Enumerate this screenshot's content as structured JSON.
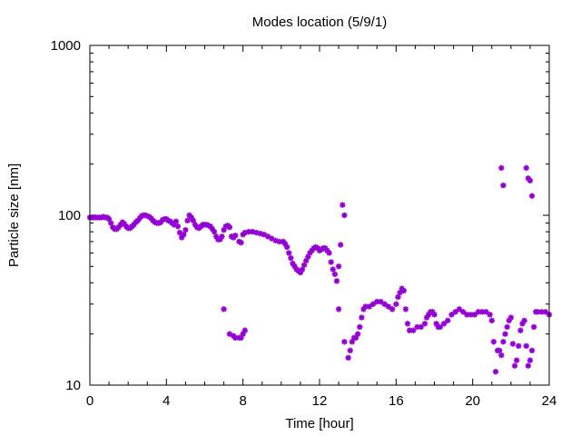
{
  "chart_data": {
    "type": "scatter",
    "title": "Modes location (5/9/1)",
    "xlabel": "Time [hour]",
    "ylabel": "Particle size [nm]",
    "xlim": [
      0,
      24
    ],
    "ylim": [
      10,
      1000
    ],
    "yscale": "log",
    "x_ticks": [
      0,
      4,
      8,
      12,
      16,
      20,
      24
    ],
    "x_tick_labels": [
      "0",
      "4",
      "8",
      "12",
      "16",
      "20",
      "24"
    ],
    "y_ticks": [
      10,
      100,
      1000
    ],
    "y_tick_labels": [
      "10",
      "100",
      "1000"
    ],
    "grid": false,
    "legend": "none",
    "marker_color": "#9400d3",
    "series": [
      {
        "name": "",
        "points": [
          [
            0.0,
            97
          ],
          [
            0.1,
            97
          ],
          [
            0.2,
            97
          ],
          [
            0.3,
            97
          ],
          [
            0.4,
            97
          ],
          [
            0.5,
            97
          ],
          [
            0.6,
            97
          ],
          [
            0.7,
            98
          ],
          [
            0.8,
            97
          ],
          [
            0.9,
            97
          ],
          [
            1.0,
            95
          ],
          [
            1.1,
            90
          ],
          [
            1.2,
            85
          ],
          [
            1.3,
            83
          ],
          [
            1.4,
            83
          ],
          [
            1.5,
            85
          ],
          [
            1.6,
            88
          ],
          [
            1.7,
            91
          ],
          [
            1.8,
            89
          ],
          [
            1.9,
            86
          ],
          [
            2.0,
            84
          ],
          [
            2.1,
            84
          ],
          [
            2.2,
            86
          ],
          [
            2.3,
            88
          ],
          [
            2.4,
            91
          ],
          [
            2.5,
            93
          ],
          [
            2.6,
            96
          ],
          [
            2.7,
            99
          ],
          [
            2.8,
            100
          ],
          [
            2.9,
            100
          ],
          [
            3.0,
            99
          ],
          [
            3.1,
            98
          ],
          [
            3.2,
            96
          ],
          [
            3.3,
            93
          ],
          [
            3.4,
            91
          ],
          [
            3.5,
            90
          ],
          [
            3.6,
            90
          ],
          [
            3.7,
            91
          ],
          [
            3.8,
            94
          ],
          [
            3.9,
            95
          ],
          [
            4.0,
            95
          ],
          [
            4.1,
            93
          ],
          [
            4.2,
            92
          ],
          [
            4.3,
            90
          ],
          [
            4.4,
            88
          ],
          [
            4.5,
            92
          ],
          [
            4.6,
            86
          ],
          [
            4.7,
            79
          ],
          [
            4.8,
            74
          ],
          [
            4.9,
            77
          ],
          [
            5.0,
            82
          ],
          [
            5.1,
            93
          ],
          [
            5.2,
            100
          ],
          [
            5.3,
            97
          ],
          [
            5.4,
            93
          ],
          [
            5.5,
            88
          ],
          [
            5.6,
            85
          ],
          [
            5.7,
            84
          ],
          [
            5.8,
            86
          ],
          [
            5.9,
            88
          ],
          [
            6.0,
            88
          ],
          [
            6.1,
            88
          ],
          [
            6.2,
            87
          ],
          [
            6.3,
            86
          ],
          [
            6.4,
            83
          ],
          [
            6.5,
            80
          ],
          [
            6.6,
            75
          ],
          [
            6.7,
            72
          ],
          [
            6.8,
            72
          ],
          [
            6.9,
            75
          ],
          [
            7.0,
            82
          ],
          [
            7.1,
            86
          ],
          [
            7.2,
            87
          ],
          [
            7.3,
            85
          ],
          [
            7.4,
            75
          ],
          [
            7.5,
            74
          ],
          [
            7.6,
            76
          ],
          [
            7.8,
            70
          ],
          [
            7.9,
            69
          ],
          [
            8.0,
            77
          ],
          [
            8.1,
            79
          ],
          [
            8.3,
            80
          ],
          [
            8.5,
            80
          ],
          [
            8.7,
            79
          ],
          [
            8.9,
            78
          ],
          [
            9.1,
            77
          ],
          [
            9.3,
            75
          ],
          [
            9.5,
            73
          ],
          [
            9.7,
            71
          ],
          [
            9.9,
            70
          ],
          [
            10.1,
            70
          ],
          [
            10.2,
            68
          ],
          [
            10.3,
            65
          ],
          [
            10.4,
            60
          ],
          [
            10.5,
            56
          ],
          [
            10.6,
            52
          ],
          [
            10.7,
            50
          ],
          [
            10.8,
            48
          ],
          [
            10.9,
            47
          ],
          [
            11.0,
            46
          ],
          [
            11.1,
            48
          ],
          [
            11.2,
            51
          ],
          [
            11.3,
            54
          ],
          [
            11.4,
            57
          ],
          [
            11.5,
            60
          ],
          [
            11.6,
            62
          ],
          [
            11.7,
            64
          ],
          [
            11.8,
            65
          ],
          [
            11.9,
            64
          ],
          [
            12.0,
            62
          ],
          [
            12.1,
            63
          ],
          [
            12.2,
            64
          ],
          [
            12.3,
            64
          ],
          [
            12.4,
            62
          ],
          [
            12.5,
            60
          ],
          [
            12.6,
            53
          ],
          [
            12.7,
            48
          ],
          [
            12.8,
            45
          ],
          [
            12.9,
            41
          ],
          [
            13.0,
            50
          ],
          [
            13.1,
            67
          ],
          [
            13.2,
            115
          ],
          [
            13.3,
            100
          ],
          [
            7.0,
            28
          ],
          [
            7.3,
            20
          ],
          [
            7.5,
            19.5
          ],
          [
            7.6,
            19
          ],
          [
            7.8,
            19
          ],
          [
            7.9,
            19
          ],
          [
            8.0,
            20
          ],
          [
            8.1,
            21
          ],
          [
            13.0,
            28
          ],
          [
            13.3,
            18
          ],
          [
            13.5,
            14.5
          ],
          [
            13.6,
            16
          ],
          [
            13.7,
            18
          ],
          [
            13.8,
            19
          ],
          [
            13.9,
            19
          ],
          [
            14.0,
            20
          ],
          [
            14.1,
            22
          ],
          [
            14.2,
            25
          ],
          [
            14.3,
            28
          ],
          [
            14.4,
            29
          ],
          [
            14.6,
            29
          ],
          [
            14.8,
            30
          ],
          [
            15.0,
            31
          ],
          [
            15.2,
            31
          ],
          [
            15.4,
            30
          ],
          [
            15.6,
            29
          ],
          [
            15.8,
            28
          ],
          [
            16.0,
            30
          ],
          [
            16.1,
            33
          ],
          [
            16.2,
            35
          ],
          [
            16.3,
            37
          ],
          [
            16.4,
            36
          ],
          [
            16.5,
            28
          ],
          [
            16.6,
            23
          ],
          [
            16.7,
            21
          ],
          [
            16.9,
            21
          ],
          [
            17.1,
            22
          ],
          [
            17.3,
            22
          ],
          [
            17.5,
            23
          ],
          [
            17.6,
            25
          ],
          [
            17.7,
            26
          ],
          [
            17.8,
            27
          ],
          [
            17.9,
            27
          ],
          [
            18.0,
            26
          ],
          [
            18.1,
            23
          ],
          [
            18.2,
            22
          ],
          [
            18.3,
            22
          ],
          [
            18.5,
            23
          ],
          [
            18.7,
            24
          ],
          [
            18.9,
            26
          ],
          [
            19.1,
            27
          ],
          [
            19.3,
            28
          ],
          [
            19.5,
            27
          ],
          [
            19.7,
            26
          ],
          [
            19.9,
            26
          ],
          [
            20.1,
            26
          ],
          [
            20.3,
            27
          ],
          [
            20.5,
            27
          ],
          [
            20.7,
            27
          ],
          [
            20.9,
            26
          ],
          [
            21.0,
            24
          ],
          [
            21.1,
            18
          ],
          [
            21.2,
            12
          ],
          [
            21.3,
            16
          ],
          [
            21.4,
            16
          ],
          [
            21.5,
            15
          ],
          [
            21.6,
            18
          ],
          [
            21.7,
            20
          ],
          [
            21.8,
            22
          ],
          [
            21.9,
            24
          ],
          [
            22.0,
            25
          ],
          [
            22.1,
            17.5
          ],
          [
            22.2,
            13
          ],
          [
            22.3,
            14
          ],
          [
            22.4,
            17
          ],
          [
            22.5,
            21
          ],
          [
            22.6,
            23
          ],
          [
            22.7,
            24
          ],
          [
            22.8,
            17
          ],
          [
            22.9,
            13
          ],
          [
            23.0,
            14
          ],
          [
            23.1,
            16
          ],
          [
            23.2,
            22
          ],
          [
            23.3,
            27
          ],
          [
            23.4,
            27
          ],
          [
            23.6,
            27
          ],
          [
            23.8,
            27
          ],
          [
            24.0,
            26
          ],
          [
            21.5,
            190
          ],
          [
            21.6,
            150
          ],
          [
            22.8,
            190
          ],
          [
            22.9,
            165
          ],
          [
            23.0,
            160
          ],
          [
            23.1,
            130
          ]
        ]
      }
    ]
  }
}
